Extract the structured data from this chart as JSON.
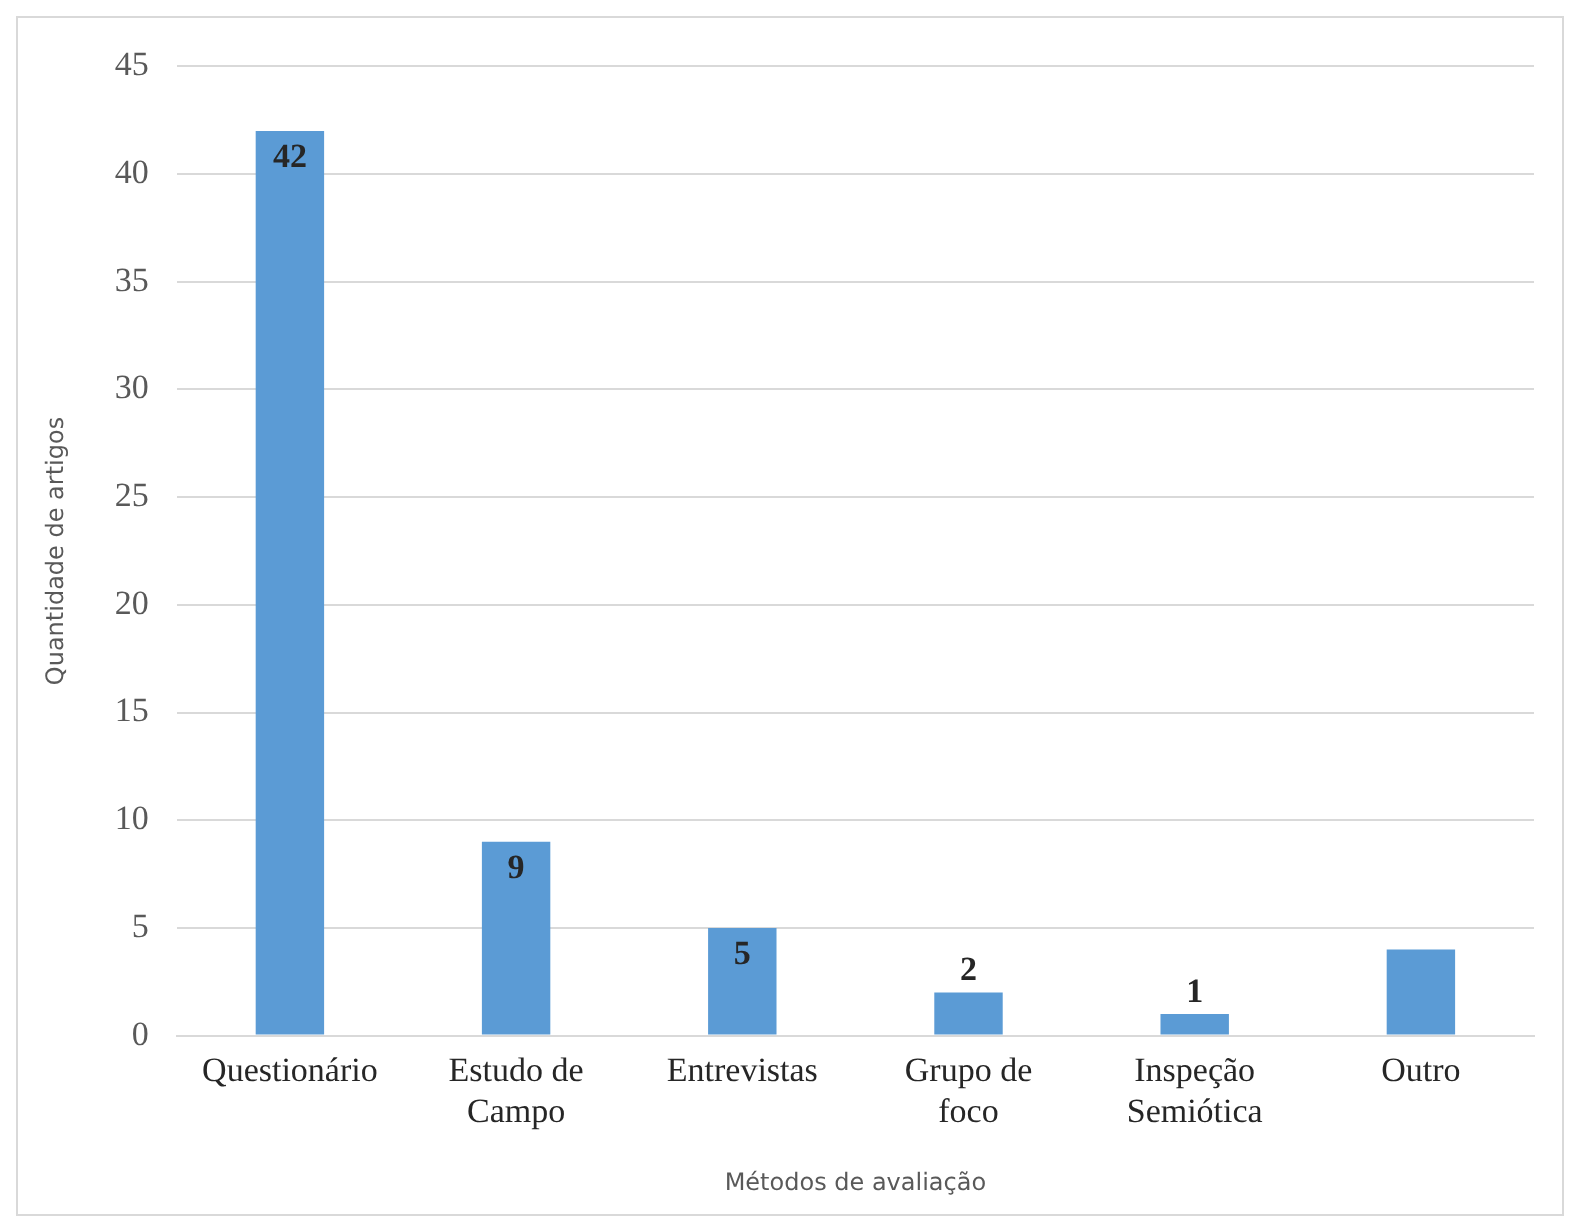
{
  "chart_data": {
    "type": "bar",
    "xlabel": "Métodos de avaliação",
    "ylabel": "Quantidade de artigos",
    "categories": [
      "Questionário",
      "Estudo de Campo",
      "Entrevistas",
      "Grupo de foco",
      "Inspeção Semiótica",
      "Outro"
    ],
    "values": [
      42,
      9,
      5,
      2,
      1,
      4
    ],
    "value_labels": [
      "42",
      "9",
      "5",
      "2",
      "1",
      null
    ],
    "color": "#5b9bd5",
    "ylim": [
      0,
      45
    ],
    "yticks": [
      0,
      5,
      10,
      15,
      20,
      25,
      30,
      35,
      40,
      45
    ],
    "grid": "y",
    "legend": false
  }
}
